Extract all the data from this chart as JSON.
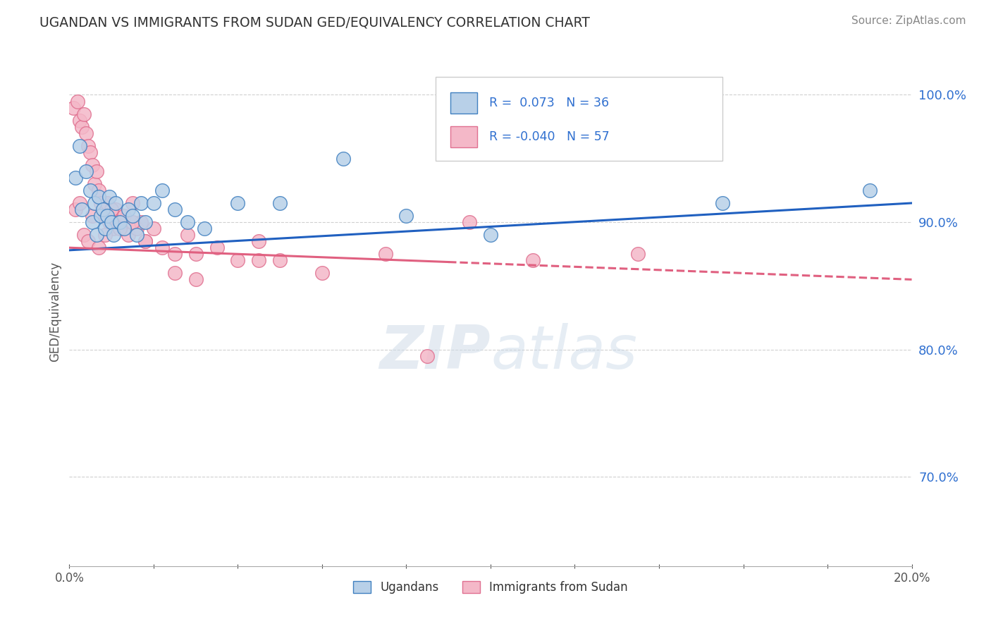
{
  "title": "UGANDAN VS IMMIGRANTS FROM SUDAN GED/EQUIVALENCY CORRELATION CHART",
  "source_text": "Source: ZipAtlas.com",
  "ylabel": "GED/Equivalency",
  "xlim": [
    0.0,
    20.0
  ],
  "ylim": [
    63.0,
    103.0
  ],
  "r_ugandan": 0.073,
  "n_ugandan": 36,
  "r_sudan": -0.04,
  "n_sudan": 57,
  "legend_label_1": "Ugandans",
  "legend_label_2": "Immigrants from Sudan",
  "blue_fill": "#b8d0e8",
  "pink_fill": "#f4b8c8",
  "blue_edge": "#4080c0",
  "pink_edge": "#e07090",
  "blue_line": "#2060c0",
  "pink_line": "#e06080",
  "ytick_vals": [
    70,
    80,
    90,
    100
  ],
  "blue_trend": [
    87.8,
    91.5
  ],
  "pink_trend_solid_end_x": 9.0,
  "pink_trend": [
    88.0,
    85.5
  ],
  "ugandan_x": [
    0.15,
    0.25,
    0.3,
    0.4,
    0.5,
    0.55,
    0.6,
    0.65,
    0.7,
    0.75,
    0.8,
    0.85,
    0.9,
    0.95,
    1.0,
    1.05,
    1.1,
    1.2,
    1.3,
    1.4,
    1.5,
    1.6,
    1.7,
    1.8,
    2.0,
    2.2,
    2.5,
    2.8,
    3.2,
    4.0,
    5.0,
    6.5,
    8.0,
    10.0,
    15.5,
    19.0
  ],
  "ugandan_y": [
    93.5,
    96.0,
    91.0,
    94.0,
    92.5,
    90.0,
    91.5,
    89.0,
    92.0,
    90.5,
    91.0,
    89.5,
    90.5,
    92.0,
    90.0,
    89.0,
    91.5,
    90.0,
    89.5,
    91.0,
    90.5,
    89.0,
    91.5,
    90.0,
    91.5,
    92.5,
    91.0,
    90.0,
    89.5,
    91.5,
    91.5,
    95.0,
    90.5,
    89.0,
    91.5,
    92.5
  ],
  "sudan_x": [
    0.1,
    0.2,
    0.25,
    0.3,
    0.35,
    0.4,
    0.45,
    0.5,
    0.55,
    0.6,
    0.65,
    0.7,
    0.75,
    0.8,
    0.85,
    0.9,
    0.95,
    1.0,
    1.05,
    1.1,
    1.15,
    1.2,
    1.3,
    1.4,
    1.5,
    1.6,
    1.7,
    1.8,
    2.0,
    2.2,
    2.5,
    2.8,
    3.0,
    3.5,
    4.0,
    4.5,
    5.0,
    6.0,
    7.5,
    9.5,
    11.0,
    13.5,
    0.15,
    0.25,
    0.35,
    0.45,
    0.55,
    0.7,
    0.85,
    1.0,
    1.2,
    1.5,
    1.8,
    2.5,
    3.0,
    4.5,
    8.5
  ],
  "sudan_y": [
    99.0,
    99.5,
    98.0,
    97.5,
    98.5,
    97.0,
    96.0,
    95.5,
    94.5,
    93.0,
    94.0,
    92.5,
    91.5,
    91.0,
    90.5,
    91.5,
    90.0,
    90.5,
    89.5,
    91.0,
    90.0,
    89.5,
    90.5,
    89.0,
    91.5,
    89.5,
    90.0,
    88.5,
    89.5,
    88.0,
    87.5,
    89.0,
    87.5,
    88.0,
    87.0,
    88.5,
    87.0,
    86.0,
    87.5,
    90.0,
    87.0,
    87.5,
    91.0,
    91.5,
    89.0,
    88.5,
    90.5,
    88.0,
    89.0,
    91.0,
    89.5,
    90.0,
    88.5,
    86.0,
    85.5,
    87.0,
    79.5
  ]
}
